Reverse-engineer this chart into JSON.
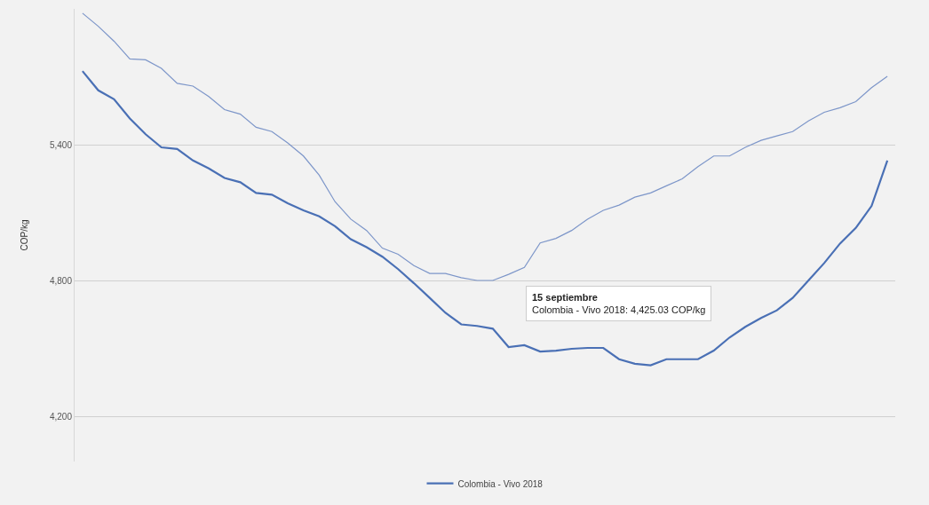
{
  "chart_data": {
    "type": "line",
    "ylabel": "COP/kg",
    "categories": [
      null,
      null,
      null,
      null,
      null,
      null,
      null,
      null,
      null,
      null,
      null,
      null,
      null,
      null,
      null,
      null,
      null,
      null,
      null,
      null,
      null,
      null,
      null,
      null,
      null,
      null,
      null,
      null,
      null,
      null,
      null,
      null,
      null,
      null,
      null,
      null,
      null,
      null,
      null,
      null,
      null,
      null,
      null,
      null,
      null,
      null,
      null,
      null,
      null,
      null,
      null,
      null
    ],
    "series": [
      {
        "name": "Colombia - Vivo 2018",
        "color": "#4a70b5",
        "values": [
          5725,
          5640,
          5601,
          5516,
          5446,
          5388,
          5381,
          5330,
          5295,
          5253,
          5234,
          5187,
          5179,
          5141,
          5110,
          5083,
          5040,
          4982,
          4947,
          4905,
          4850,
          4788,
          4723,
          4657,
          4606,
          4599,
          4587,
          4506,
          4514,
          4486,
          4490,
          4498,
          4502,
          4502,
          4452,
          4432,
          4425,
          4452,
          4452,
          4452,
          4490,
          4548,
          4595,
          4634,
          4668,
          4723,
          4800,
          4877,
          4963,
          5032,
          5129,
          5330
        ]
      },
      {
        "color": "#7d96c9",
        "values": [
          5981,
          5923,
          5857,
          5779,
          5775,
          5737,
          5671,
          5659,
          5613,
          5555,
          5535,
          5477,
          5458,
          5408,
          5350,
          5265,
          5148,
          5071,
          5021,
          4943,
          4916,
          4866,
          4831,
          4831,
          4812,
          4800,
          4800,
          4827,
          4858,
          4966,
          4986,
          5021,
          5071,
          5110,
          5133,
          5168,
          5187,
          5218,
          5249,
          5303,
          5350,
          5350,
          5388,
          5419,
          5439,
          5458,
          5505,
          5543,
          5563,
          5590,
          5652,
          5702
        ]
      }
    ],
    "ylim": [
      4000,
      6000
    ],
    "yticks": [
      {
        "value": 4200,
        "label": "4,200"
      },
      {
        "value": 4800,
        "label": "4,800"
      },
      {
        "value": 5400,
        "label": "5,400"
      }
    ],
    "grid": "y",
    "legend": "bottom",
    "marker": "none",
    "line_style": "solid",
    "annotations": [
      "15 septiembre\nColombia - Vivo 2018: 4,425.03 COP/kg"
    ]
  }
}
